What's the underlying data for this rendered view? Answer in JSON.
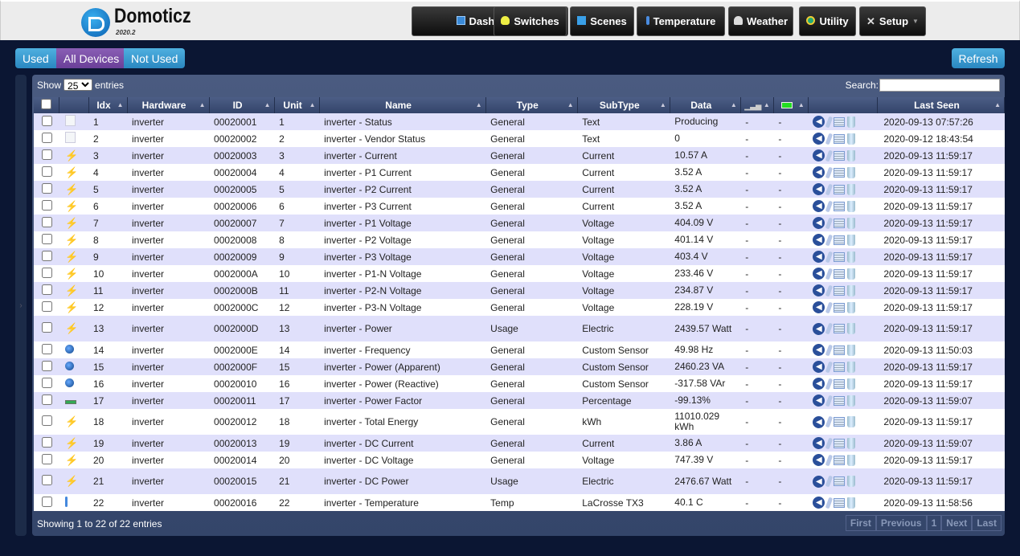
{
  "header": {
    "brand": "Domoticz",
    "version": "2020.2",
    "nav": [
      {
        "label": "Dashboard",
        "icon": "dashboard-icon"
      },
      {
        "label": "Switches",
        "icon": "lightbulb-icon"
      },
      {
        "label": "Scenes",
        "icon": "clapperboard-icon"
      },
      {
        "label": "Temperature",
        "icon": "thermometer-icon"
      },
      {
        "label": "Weather",
        "icon": "cloud-icon"
      },
      {
        "label": "Utility",
        "icon": "utility-icon"
      },
      {
        "label": "Setup",
        "icon": "tools-icon"
      }
    ]
  },
  "filters": {
    "used": "Used",
    "all": "All Devices",
    "not_used": "Not Used",
    "active": "All Devices"
  },
  "refresh": "Refresh",
  "table": {
    "show": "Show",
    "entries": "entries",
    "page_size": "25",
    "search_label": "Search:",
    "search_value": "",
    "columns": [
      "",
      "",
      "Idx",
      "Hardware",
      "ID",
      "Unit",
      "Name",
      "Type",
      "SubType",
      "Data",
      "",
      "",
      "",
      "Last Seen"
    ],
    "rows": [
      [
        "text",
        "1",
        "inverter",
        "00020001",
        "1",
        "inverter - Status",
        "General",
        "Text",
        "Producing",
        "2020-09-13 07:57:26"
      ],
      [
        "text",
        "2",
        "inverter",
        "00020002",
        "2",
        "inverter - Vendor Status",
        "General",
        "Text",
        "0",
        "2020-09-12 18:43:54"
      ],
      [
        "current",
        "3",
        "inverter",
        "00020003",
        "3",
        "inverter - Current",
        "General",
        "Current",
        "10.57 A",
        "2020-09-13 11:59:17"
      ],
      [
        "current",
        "4",
        "inverter",
        "00020004",
        "4",
        "inverter - P1 Current",
        "General",
        "Current",
        "3.52 A",
        "2020-09-13 11:59:17"
      ],
      [
        "current",
        "5",
        "inverter",
        "00020005",
        "5",
        "inverter - P2 Current",
        "General",
        "Current",
        "3.52 A",
        "2020-09-13 11:59:17"
      ],
      [
        "current",
        "6",
        "inverter",
        "00020006",
        "6",
        "inverter - P3 Current",
        "General",
        "Current",
        "3.52 A",
        "2020-09-13 11:59:17"
      ],
      [
        "current",
        "7",
        "inverter",
        "00020007",
        "7",
        "inverter - P1 Voltage",
        "General",
        "Voltage",
        "404.09 V",
        "2020-09-13 11:59:17"
      ],
      [
        "current",
        "8",
        "inverter",
        "00020008",
        "8",
        "inverter - P2 Voltage",
        "General",
        "Voltage",
        "401.14 V",
        "2020-09-13 11:59:17"
      ],
      [
        "current",
        "9",
        "inverter",
        "00020009",
        "9",
        "inverter - P3 Voltage",
        "General",
        "Voltage",
        "403.4 V",
        "2020-09-13 11:59:17"
      ],
      [
        "current",
        "10",
        "inverter",
        "0002000A",
        "10",
        "inverter - P1-N Voltage",
        "General",
        "Voltage",
        "233.46 V",
        "2020-09-13 11:59:17"
      ],
      [
        "current",
        "11",
        "inverter",
        "0002000B",
        "11",
        "inverter - P2-N Voltage",
        "General",
        "Voltage",
        "234.87 V",
        "2020-09-13 11:59:17"
      ],
      [
        "current",
        "12",
        "inverter",
        "0002000C",
        "12",
        "inverter - P3-N Voltage",
        "General",
        "Voltage",
        "228.19 V",
        "2020-09-13 11:59:17"
      ],
      [
        "current",
        "13",
        "inverter",
        "0002000D",
        "13",
        "inverter - Power",
        "Usage",
        "Electric",
        "2439.57 Watt",
        "2020-09-13 11:59:17"
      ],
      [
        "globe",
        "14",
        "inverter",
        "0002000E",
        "14",
        "inverter - Frequency",
        "General",
        "Custom Sensor",
        "49.98 Hz",
        "2020-09-13 11:50:03"
      ],
      [
        "globe",
        "15",
        "inverter",
        "0002000F",
        "15",
        "inverter - Power (Apparent)",
        "General",
        "Custom Sensor",
        "2460.23 VA",
        "2020-09-13 11:59:17"
      ],
      [
        "globe",
        "16",
        "inverter",
        "00020010",
        "16",
        "inverter - Power (Reactive)",
        "General",
        "Custom Sensor",
        "-317.58 VAr",
        "2020-09-13 11:59:17"
      ],
      [
        "percent",
        "17",
        "inverter",
        "00020011",
        "17",
        "inverter - Power Factor",
        "General",
        "Percentage",
        "-99.13%",
        "2020-09-13 11:59:07"
      ],
      [
        "current",
        "18",
        "inverter",
        "00020012",
        "18",
        "inverter - Total Energy",
        "General",
        "kWh",
        "11010.029 kWh",
        "2020-09-13 11:59:17"
      ],
      [
        "current",
        "19",
        "inverter",
        "00020013",
        "19",
        "inverter - DC Current",
        "General",
        "Current",
        "3.86 A",
        "2020-09-13 11:59:07"
      ],
      [
        "current",
        "20",
        "inverter",
        "00020014",
        "20",
        "inverter - DC Voltage",
        "General",
        "Voltage",
        "747.39 V",
        "2020-09-13 11:59:17"
      ],
      [
        "current",
        "21",
        "inverter",
        "00020015",
        "21",
        "inverter - DC Power",
        "Usage",
        "Electric",
        "2476.67 Watt",
        "2020-09-13 11:59:17"
      ],
      [
        "thermo",
        "22",
        "inverter",
        "00020016",
        "22",
        "inverter - Temperature",
        "Temp",
        "LaCrosse TX3",
        "40.1 C",
        "2020-09-13 11:58:56"
      ]
    ],
    "signal": "-",
    "battery": "-",
    "footer": "Showing 1 to 22 of 22 entries",
    "pager": [
      "First",
      "Previous",
      "1",
      "Next",
      "Last"
    ]
  }
}
